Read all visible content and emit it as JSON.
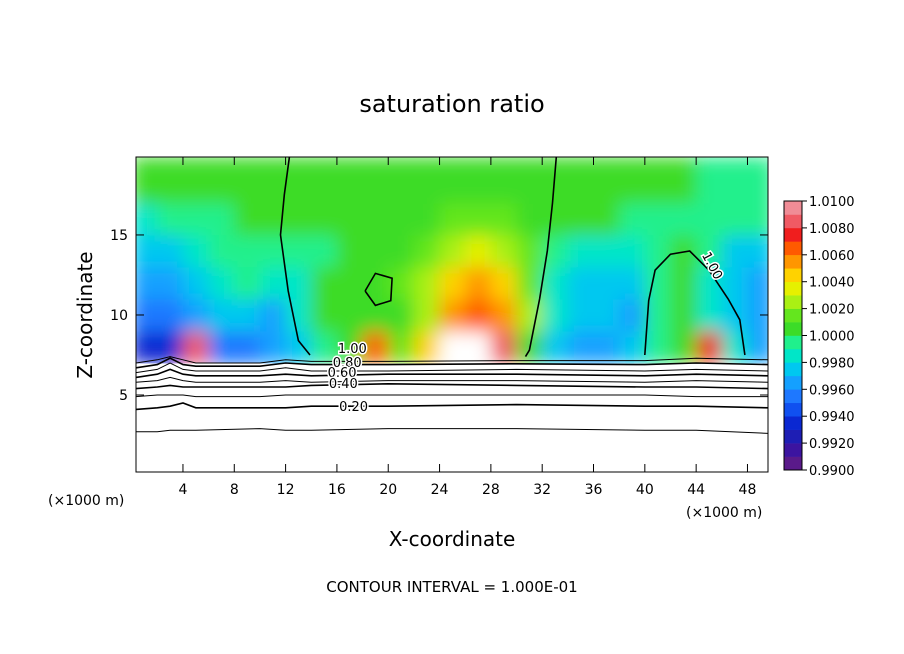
{
  "chart_data": {
    "type": "contour",
    "title": "saturation ratio",
    "x_label": "X-coordinate",
    "y_label": "Z-coordinate",
    "x_units": "(×1000 m)",
    "footer": "CONTOUR INTERVAL = 1.000E-01",
    "xlim": [
      0.34,
      49.6
    ],
    "ylim": [
      0.19,
      19.87
    ],
    "xticks": [
      4,
      8,
      12,
      16,
      20,
      24,
      28,
      32,
      36,
      40,
      44,
      48
    ],
    "yticks": [
      5,
      10,
      15
    ],
    "field": {
      "x": [
        1,
        3,
        5,
        7,
        9,
        11,
        13,
        15,
        17,
        19,
        21,
        23,
        25,
        27,
        29,
        31,
        33,
        35,
        37,
        39,
        41,
        43,
        45,
        47,
        49
      ],
      "y": [
        8,
        10,
        12,
        14,
        16,
        18
      ],
      "values": [
        [
          0.993,
          0.9935,
          1.008,
          0.9955,
          0.995,
          0.996,
          0.997,
          0.9995,
          1.0002,
          1.0068,
          1.0012,
          1.004,
          1.012,
          1.012,
          1.008,
          1.001,
          0.997,
          0.9965,
          0.996,
          0.997,
          0.9998,
          1.0005,
          1.0072,
          0.998,
          0.996
        ],
        [
          0.995,
          0.9952,
          0.9965,
          0.9975,
          0.997,
          0.9965,
          0.998,
          1.0,
          1.0003,
          1.0005,
          1.0008,
          1.003,
          1.0058,
          1.0065,
          1.0055,
          1.002,
          0.998,
          0.9972,
          0.997,
          0.9962,
          0.999,
          1.0002,
          0.9985,
          0.9972,
          0.9965
        ],
        [
          0.9965,
          0.9968,
          0.9978,
          0.9988,
          0.999,
          0.998,
          0.9985,
          1.0002,
          1.0003,
          1.0006,
          1.0012,
          1.0025,
          1.0045,
          1.0052,
          1.004,
          1.0015,
          0.9985,
          0.9978,
          0.9975,
          0.997,
          0.9995,
          1.0008,
          0.998,
          0.997,
          0.9968
        ],
        [
          0.9975,
          0.9978,
          0.9985,
          0.9992,
          0.9995,
          0.9993,
          0.999,
          0.9998,
          1.0003,
          1.0005,
          1.0008,
          1.0015,
          1.0028,
          1.0032,
          1.0025,
          1.0012,
          0.9995,
          0.9988,
          0.9985,
          0.9984,
          0.9995,
          1.0005,
          0.999,
          0.9978,
          0.9975
        ],
        [
          0.9988,
          0.999,
          0.9995,
          0.9998,
          1.0,
          1.0,
          1.0,
          1.0002,
          1.0004,
          1.0005,
          1.0006,
          1.0008,
          1.0012,
          1.0016,
          1.0015,
          1.001,
          1.0006,
          1.0002,
          1.0,
          0.9996,
          0.9992,
          0.9995,
          0.9998,
          0.9995,
          0.999
        ],
        [
          1.0003,
          1.0003,
          1.0004,
          1.0005,
          1.0005,
          1.0005,
          1.0004,
          1.0004,
          1.0004,
          1.0005,
          1.0005,
          1.0006,
          1.0008,
          1.001,
          1.001,
          1.0008,
          1.0006,
          1.0004,
          1.0003,
          1.0002,
          1.0,
          1.0,
          0.9998,
          0.9998,
          0.9998
        ]
      ]
    },
    "contours": [
      {
        "level": 1,
        "label": "1.00",
        "x": [
          12.3,
          11.9,
          11.6,
          12.2,
          13.0,
          13.9
        ],
        "y": [
          19.87,
          17.5,
          15.0,
          11.5,
          8.4,
          7.5
        ]
      },
      {
        "level": 1,
        "x": [
          33.1,
          32.8,
          32.4,
          31.8,
          31.0,
          30.7
        ],
        "y": [
          19.87,
          17.0,
          14.0,
          11.0,
          7.8,
          7.4
        ]
      },
      {
        "level": 1,
        "label": "1.00",
        "x": [
          40.0,
          40.3,
          40.8,
          42.0,
          43.5,
          45.0,
          46.5,
          47.4,
          47.8
        ],
        "y": [
          7.5,
          10.9,
          12.8,
          13.8,
          14.0,
          12.8,
          11.0,
          9.7,
          7.5
        ]
      },
      {
        "level": 1,
        "x": [
          18.2,
          19.0,
          20.3,
          20.2,
          19.0,
          18.2
        ],
        "y": [
          11.5,
          12.6,
          12.3,
          10.9,
          10.6,
          11.5
        ]
      },
      {
        "level": 0.9,
        "x": [
          0.34,
          2,
          3,
          4,
          5,
          10,
          12,
          14,
          20,
          30,
          40,
          44,
          49.6
        ],
        "y": [
          7.0,
          7.2,
          7.4,
          7.2,
          7.0,
          7.0,
          7.2,
          7.1,
          7.1,
          7.15,
          7.15,
          7.3,
          7.2
        ]
      },
      {
        "level": 0.8,
        "label": "0.80",
        "x": [
          0.34,
          2,
          3,
          4,
          5,
          10,
          12,
          14,
          20,
          30,
          40,
          44,
          49.6
        ],
        "y": [
          6.7,
          6.9,
          7.3,
          6.9,
          6.8,
          6.8,
          7.0,
          6.9,
          6.9,
          6.95,
          6.9,
          7.0,
          6.9
        ]
      },
      {
        "level": 0.7,
        "x": [
          0.34,
          2,
          3,
          4,
          5,
          10,
          12,
          14,
          20,
          30,
          40,
          44,
          49.6
        ],
        "y": [
          6.4,
          6.6,
          7.0,
          6.6,
          6.5,
          6.5,
          6.7,
          6.5,
          6.5,
          6.6,
          6.5,
          6.6,
          6.5
        ]
      },
      {
        "level": 0.6,
        "label": "0.60",
        "x": [
          0.34,
          2,
          3,
          4,
          5,
          10,
          12,
          14,
          20,
          30,
          40,
          44,
          49.6
        ],
        "y": [
          6.1,
          6.3,
          6.6,
          6.3,
          6.2,
          6.2,
          6.3,
          6.2,
          6.3,
          6.3,
          6.2,
          6.3,
          6.2
        ]
      },
      {
        "level": 0.5,
        "x": [
          0.34,
          2,
          3,
          4,
          5,
          10,
          12,
          14,
          20,
          30,
          40,
          44,
          49.6
        ],
        "y": [
          5.8,
          5.9,
          6.1,
          5.9,
          5.8,
          5.8,
          5.9,
          5.8,
          5.9,
          5.9,
          5.8,
          5.9,
          5.8
        ]
      },
      {
        "level": 0.4,
        "label": "0.40",
        "x": [
          0.34,
          2,
          3,
          4,
          5,
          10,
          12,
          14,
          20,
          30,
          40,
          44,
          49.6
        ],
        "y": [
          5.4,
          5.5,
          5.6,
          5.5,
          5.5,
          5.5,
          5.5,
          5.6,
          5.7,
          5.6,
          5.5,
          5.5,
          5.4
        ]
      },
      {
        "level": 0.3,
        "x": [
          0.34,
          2,
          3,
          4,
          5,
          10,
          12,
          14,
          20,
          30,
          40,
          44,
          49.6
        ],
        "y": [
          4.9,
          5.0,
          5.0,
          5.0,
          4.9,
          4.9,
          5.0,
          5.0,
          5.0,
          5.0,
          5.0,
          4.9,
          4.9
        ]
      },
      {
        "level": 0.2,
        "label": "0.20",
        "x": [
          0.34,
          2,
          3,
          4,
          5,
          10,
          12,
          14,
          20,
          30,
          40,
          44,
          49.6
        ],
        "y": [
          4.1,
          4.2,
          4.3,
          4.5,
          4.2,
          4.2,
          4.2,
          4.3,
          4.3,
          4.4,
          4.3,
          4.3,
          4.2
        ]
      },
      {
        "level": 0.1,
        "x": [
          0.34,
          2,
          3,
          4,
          5,
          10,
          12,
          14,
          20,
          30,
          40,
          44,
          49.6
        ],
        "y": [
          2.7,
          2.7,
          2.8,
          2.8,
          2.8,
          2.9,
          2.8,
          2.8,
          2.9,
          2.9,
          2.8,
          2.8,
          2.6
        ]
      }
    ],
    "colorbar": {
      "lim": [
        0.99,
        1.01
      ],
      "ticks": [
        {
          "value": 0.99,
          "label": "0.9900"
        },
        {
          "value": 0.992,
          "label": "0.9920"
        },
        {
          "value": 0.994,
          "label": "0.9940"
        },
        {
          "value": 0.996,
          "label": "0.9960"
        },
        {
          "value": 0.998,
          "label": "0.9980"
        },
        {
          "value": 1.0,
          "label": "1.0000"
        },
        {
          "value": 1.002,
          "label": "1.0020"
        },
        {
          "value": 1.004,
          "label": "1.0040"
        },
        {
          "value": 1.006,
          "label": "1.0060"
        },
        {
          "value": 1.008,
          "label": "1.0080"
        },
        {
          "value": 1.01,
          "label": "1.0100"
        }
      ],
      "colors": [
        "#5a1a8a",
        "#3c14a0",
        "#1e1eb4",
        "#0a28d2",
        "#1050f0",
        "#1e78ff",
        "#14a0ff",
        "#00c8f0",
        "#00e6c8",
        "#20f08c",
        "#3cdc28",
        "#64e61e",
        "#aaf014",
        "#e6f000",
        "#ffd200",
        "#ff9600",
        "#ff5a00",
        "#f01e1e",
        "#f05a64",
        "#f08c96"
      ]
    }
  }
}
